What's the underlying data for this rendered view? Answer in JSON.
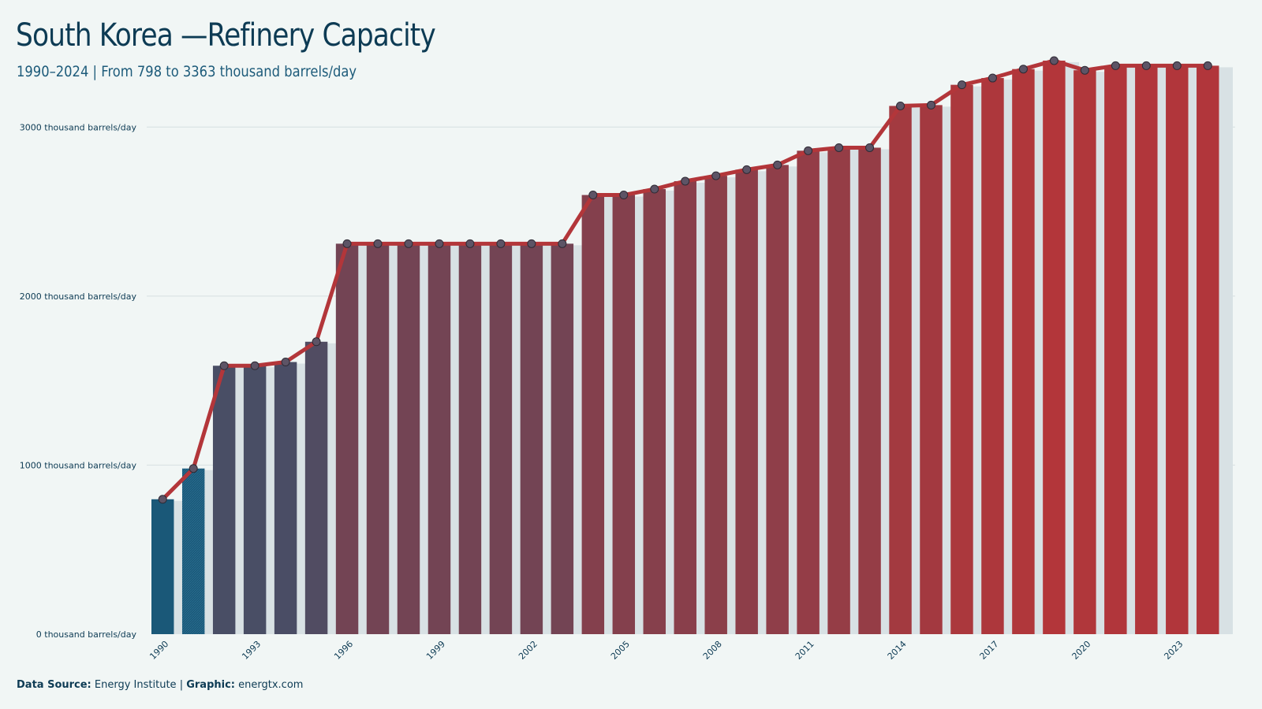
{
  "header": {
    "title": "South Korea —Refinery Capacity",
    "subtitle": "1990–2024 | From 798 to 3363 thousand barrels/day"
  },
  "footer": {
    "source_label": "Data Source:",
    "source_value": "Energy Institute",
    "separator": "|",
    "graphic_label": "Graphic:",
    "graphic_value": "energtx.com"
  },
  "colors": {
    "start": "#1a5878",
    "end": "#b3363a",
    "line": "#b3363a",
    "shadow": "#d8e1e4",
    "grid": "#d6dfe1",
    "marker_fill": "#5d5466",
    "marker_stroke": "#2e2a34"
  },
  "chart_data": {
    "type": "bar",
    "x": [
      1990,
      1991,
      1992,
      1993,
      1994,
      1995,
      1996,
      1997,
      1998,
      1999,
      2000,
      2001,
      2002,
      2003,
      2004,
      2005,
      2006,
      2007,
      2008,
      2009,
      2010,
      2011,
      2012,
      2013,
      2014,
      2015,
      2016,
      2017,
      2018,
      2019,
      2020,
      2021,
      2022,
      2023,
      2024
    ],
    "values": [
      798,
      980,
      1588,
      1588,
      1610,
      1730,
      2310,
      2310,
      2310,
      2310,
      2310,
      2310,
      2310,
      2310,
      2598,
      2598,
      2633,
      2680,
      2712,
      2748,
      2776,
      2860,
      2878,
      2878,
      3125,
      3130,
      3250,
      3290,
      3343,
      3393,
      3336,
      3363,
      3363,
      3363,
      3363
    ],
    "overlay": "line with markers",
    "xticks": [
      "1990",
      "1993",
      "1996",
      "1999",
      "2002",
      "2005",
      "2008",
      "2011",
      "2014",
      "2017",
      "2020",
      "2023"
    ],
    "yticks": [
      "0 thousand barrels/day",
      "1000 thousand barrels/day",
      "2000 thousand barrels/day",
      "3000 thousand barrels/day"
    ],
    "ytick_values": [
      0,
      1000,
      2000,
      3000
    ],
    "ylim": [
      0,
      3500
    ],
    "grid": "horizontal",
    "legend": "none"
  }
}
